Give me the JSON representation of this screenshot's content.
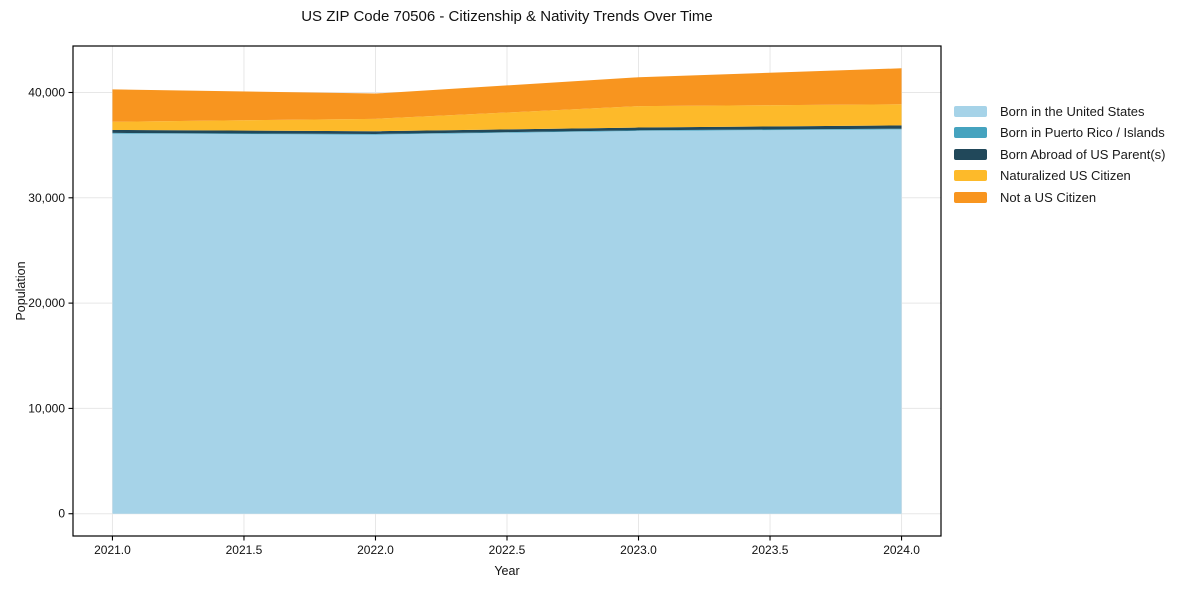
{
  "chart_data": {
    "type": "area",
    "stacked": true,
    "title": "US ZIP Code 70506 - Citizenship & Nativity Trends Over Time",
    "xlabel": "Year",
    "ylabel": "Population",
    "x": [
      2021,
      2022,
      2023,
      2024
    ],
    "series": [
      {
        "name": "Born in the United States",
        "color": "#A6D3E8",
        "values": [
          36100,
          36000,
          36350,
          36500
        ]
      },
      {
        "name": "Born in Puerto Rico / Islands",
        "color": "#45A3BF",
        "values": [
          60,
          60,
          60,
          60
        ]
      },
      {
        "name": "Born Abroad of US Parent(s)",
        "color": "#21485A",
        "values": [
          280,
          260,
          260,
          320
        ]
      },
      {
        "name": "Naturalized US Citizen",
        "color": "#FDBA2A",
        "values": [
          780,
          1180,
          2030,
          2000
        ]
      },
      {
        "name": "Not a US Citizen",
        "color": "#F8951F",
        "values": [
          3080,
          2400,
          2750,
          3420
        ]
      }
    ],
    "totals": [
      40300,
      39900,
      41450,
      42300
    ],
    "xlim": [
      2020.85,
      2024.15
    ],
    "ylim": [
      -2115,
      44415
    ],
    "xticks": [
      {
        "v": 2021.0,
        "label": "2021.0"
      },
      {
        "v": 2021.5,
        "label": "2021.5"
      },
      {
        "v": 2022.0,
        "label": "2022.0"
      },
      {
        "v": 2022.5,
        "label": "2022.5"
      },
      {
        "v": 2023.0,
        "label": "2023.0"
      },
      {
        "v": 2023.5,
        "label": "2023.5"
      },
      {
        "v": 2024.0,
        "label": "2024.0"
      }
    ],
    "yticks": [
      {
        "v": 0,
        "label": "0"
      },
      {
        "v": 10000,
        "label": "10,000"
      },
      {
        "v": 20000,
        "label": "20,000"
      },
      {
        "v": 30000,
        "label": "30,000"
      },
      {
        "v": 40000,
        "label": "40,000"
      }
    ],
    "grid": true,
    "grid_color": "#e7e7e7",
    "spine_color": "#000000",
    "legend_position": "right"
  }
}
